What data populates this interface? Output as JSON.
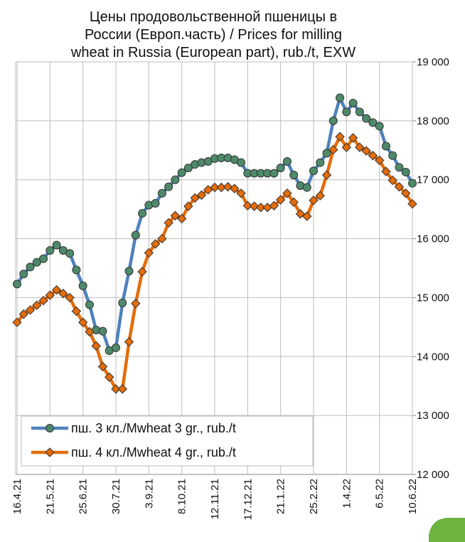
{
  "chart_data": {
    "type": "line",
    "title": [
      "Цены продовольственной пшеницы в",
      "России (Европ.часть) / Prices for milling",
      "wheat in Russia (European part), rub./t, EXW"
    ],
    "categories": [
      "16.4.21",
      null,
      null,
      null,
      null,
      "21.5.21",
      null,
      null,
      null,
      null,
      "25.6.21",
      null,
      null,
      null,
      null,
      "30.7.21",
      null,
      null,
      null,
      null,
      "3.9.21",
      null,
      null,
      null,
      null,
      "8.10.21",
      null,
      null,
      null,
      null,
      "12.11.21",
      null,
      null,
      null,
      null,
      "17.12.21",
      null,
      null,
      null,
      null,
      "21.1.22",
      null,
      null,
      null,
      null,
      "25.2.22",
      null,
      null,
      null,
      null,
      "1.4.22",
      null,
      null,
      null,
      null,
      "6.5.22",
      null,
      null,
      null,
      null,
      "10.6.22"
    ],
    "series": [
      {
        "name": "пш. 3 кл./Mwheat 3 gr., rub./t",
        "color": "#4f81bd",
        "marker": "circle",
        "marker_color": "#4e8a6a",
        "values": [
          15230,
          15400,
          15520,
          15600,
          15660,
          15800,
          15890,
          15800,
          15750,
          15470,
          15200,
          14880,
          14450,
          14430,
          14100,
          14150,
          14910,
          15450,
          16060,
          16430,
          16570,
          16600,
          16770,
          16880,
          17000,
          17120,
          17200,
          17260,
          17290,
          17310,
          17360,
          17370,
          17370,
          17340,
          17290,
          17110,
          17110,
          17110,
          17110,
          17110,
          17200,
          17310,
          17080,
          16900,
          16870,
          17150,
          17290,
          17450,
          18000,
          18390,
          18150,
          18300,
          18150,
          18040,
          17970,
          17910,
          17570,
          17410,
          17210,
          17130,
          16940
        ]
      },
      {
        "name": "пш. 4 кл./Mwheat 4 gr., rub./t",
        "color": "#e46c0a",
        "marker": "diamond",
        "marker_color": "#e46c0a",
        "values": [
          14580,
          14720,
          14790,
          14870,
          14950,
          15040,
          15130,
          15070,
          15000,
          14770,
          14580,
          14420,
          14180,
          13830,
          13650,
          13450,
          13450,
          14250,
          14900,
          15440,
          15760,
          15910,
          16000,
          16270,
          16390,
          16340,
          16550,
          16690,
          16740,
          16830,
          16870,
          16870,
          16880,
          16850,
          16770,
          16560,
          16550,
          16530,
          16530,
          16560,
          16660,
          16770,
          16620,
          16420,
          16380,
          16650,
          16730,
          17080,
          17510,
          17730,
          17550,
          17710,
          17550,
          17490,
          17410,
          17330,
          17140,
          16990,
          16880,
          16770,
          16590
        ]
      }
    ],
    "ylim": [
      12000,
      19000
    ],
    "yticks": [
      {
        "value": 12000,
        "label": "12 000"
      },
      {
        "value": 13000,
        "label": "13 000"
      },
      {
        "value": 14000,
        "label": "14 000"
      },
      {
        "value": 15000,
        "label": "15 000"
      },
      {
        "value": 16000,
        "label": "16 000"
      },
      {
        "value": 17000,
        "label": "17 000"
      },
      {
        "value": 18000,
        "label": "18 000"
      },
      {
        "value": 19000,
        "label": "19 000"
      }
    ],
    "y_axis_side": "right",
    "grid": true,
    "legend": "lower left"
  }
}
